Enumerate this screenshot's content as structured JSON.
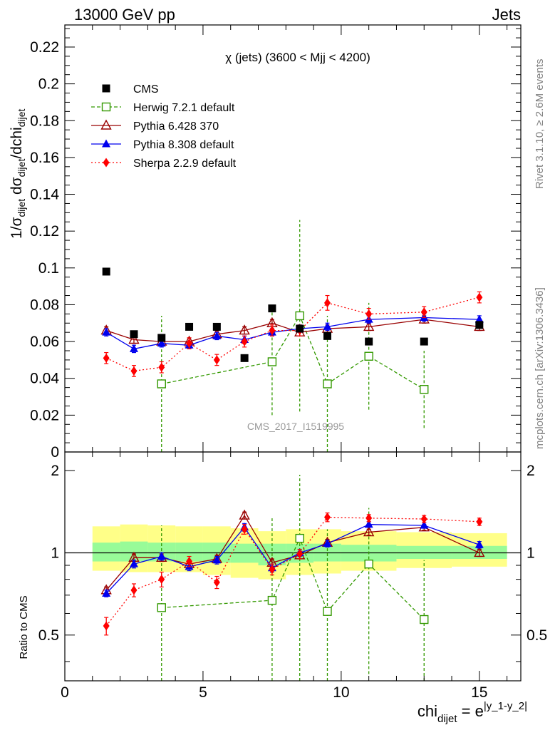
{
  "header": {
    "left": "13000 GeV pp",
    "right": "Jets"
  },
  "side_labels": {
    "top": "Rivet 3.1.10, ≥ 2.6M events",
    "bottom": "mcplots.cern.ch [arXiv:1306.3436]"
  },
  "watermark": "CMS_2017_I1519995",
  "plot_title": "χ (jets) (3600 < Mjj < 4200)",
  "axis_text": {
    "ylabel_main": "1/σdijet dσdijet/dchidijet",
    "ylabel_ratio": "Ratio to CMS",
    "xlabel": "chidijet = e|y_1-y_2|"
  },
  "colors": {
    "cms": "#000000",
    "herwig": "#339900",
    "pythia6": "#990000",
    "pythia8": "#0000ee",
    "sherpa": "#ff0000",
    "band_inner": "#98fb98",
    "band_outer": "#ffff88"
  },
  "chart_data": [
    {
      "type": "scatter",
      "panel": "main",
      "title": "χ (jets) (3600 < Mjj < 4200)",
      "xlim": [
        0,
        16.5
      ],
      "ylim": [
        0,
        0.232
      ],
      "yticks": [
        0,
        0.02,
        0.04,
        0.06,
        0.08,
        0.1,
        0.12,
        0.14,
        0.16,
        0.18,
        0.2,
        0.22
      ],
      "ytick_labels": [
        "0",
        "0.02",
        "0.04",
        "0.06",
        "0.08",
        "0.1",
        "0.12",
        "0.14",
        "0.16",
        "0.18",
        "0.2",
        "0.22"
      ],
      "legend_position": "top-left",
      "series": [
        {
          "name": "CMS",
          "key": "cms",
          "marker": "square-filled",
          "line": "none",
          "x": [
            1.5,
            2.5,
            3.5,
            4.5,
            5.5,
            6.5,
            7.5,
            8.5,
            9.5,
            11,
            13,
            15
          ],
          "y": [
            0.098,
            0.064,
            0.062,
            0.068,
            0.068,
            0.051,
            0.078,
            0.067,
            0.063,
            0.06,
            0.06,
            0.069
          ]
        },
        {
          "name": "Herwig 7.2.1 default",
          "key": "herwig",
          "marker": "square-open",
          "line": "dashed",
          "x": [
            3.5,
            7.5,
            8.5,
            9.5,
            11,
            13
          ],
          "y": [
            0.037,
            0.049,
            0.074,
            0.037,
            0.052,
            0.034
          ],
          "err": [
            0.037,
            0.029,
            0.052,
            0.037,
            0.029,
            0.021
          ]
        },
        {
          "name": "Pythia 6.428 370",
          "key": "pythia6",
          "marker": "triangle-open",
          "line": "solid",
          "x": [
            1.5,
            2.5,
            3.5,
            4.5,
            5.5,
            6.5,
            7.5,
            8.5,
            9.5,
            11,
            13,
            15
          ],
          "y": [
            0.066,
            0.061,
            0.06,
            0.06,
            0.064,
            0.066,
            0.07,
            0.065,
            0.067,
            0.068,
            0.072,
            0.068
          ],
          "err": [
            0.002,
            0.002,
            0.002,
            0.002,
            0.002,
            0.002,
            0.002,
            0.002,
            0.002,
            0.002,
            0.002,
            0.002
          ]
        },
        {
          "name": "Pythia 8.308 default",
          "key": "pythia8",
          "marker": "triangle-filled",
          "line": "solid",
          "x": [
            1.5,
            2.5,
            3.5,
            4.5,
            5.5,
            6.5,
            7.5,
            8.5,
            9.5,
            11,
            13,
            15
          ],
          "y": [
            0.065,
            0.056,
            0.059,
            0.058,
            0.063,
            0.061,
            0.065,
            0.067,
            0.068,
            0.072,
            0.073,
            0.072
          ],
          "err": [
            0.002,
            0.002,
            0.002,
            0.002,
            0.002,
            0.002,
            0.002,
            0.002,
            0.002,
            0.002,
            0.002,
            0.002
          ]
        },
        {
          "name": "Sherpa 2.2.9 default",
          "key": "sherpa",
          "marker": "diamond-filled",
          "line": "dotted",
          "x": [
            1.5,
            2.5,
            3.5,
            4.5,
            5.5,
            6.5,
            7.5,
            8.5,
            9.5,
            11,
            13,
            15
          ],
          "y": [
            0.051,
            0.044,
            0.046,
            0.059,
            0.05,
            0.06,
            0.066,
            0.066,
            0.081,
            0.075,
            0.076,
            0.084
          ],
          "err": [
            0.003,
            0.003,
            0.003,
            0.003,
            0.003,
            0.003,
            0.003,
            0.003,
            0.004,
            0.003,
            0.003,
            0.003
          ]
        }
      ]
    },
    {
      "type": "scatter",
      "panel": "ratio",
      "ylabel": "Ratio to CMS",
      "xlabel": "chidijet = e|y_1-y_2|",
      "xlim": [
        0,
        16.5
      ],
      "ylim": [
        0.34,
        2.34
      ],
      "yticks": [
        0.5,
        1,
        2
      ],
      "ytick_labels": [
        "0.5",
        "1",
        "2"
      ],
      "xticks": [
        0,
        5,
        10,
        15
      ],
      "xtick_labels": [
        "0",
        "5",
        "10",
        "15"
      ],
      "reference_line": 1,
      "band": {
        "edges": [
          1,
          2,
          3,
          4,
          5,
          6,
          7,
          8,
          9,
          10,
          12,
          14,
          16
        ],
        "inner_lo": [
          0.93,
          0.93,
          0.93,
          0.93,
          0.92,
          0.92,
          0.9,
          0.92,
          0.93,
          0.93,
          0.95,
          0.95
        ],
        "inner_hi": [
          1.09,
          1.1,
          1.09,
          1.09,
          1.09,
          1.08,
          1.08,
          1.08,
          1.08,
          1.07,
          1.06,
          1.06
        ],
        "outer_lo": [
          0.86,
          0.85,
          0.85,
          0.85,
          0.83,
          0.81,
          0.8,
          0.83,
          0.84,
          0.86,
          0.88,
          0.89
        ],
        "outer_hi": [
          1.25,
          1.27,
          1.26,
          1.25,
          1.25,
          1.23,
          1.2,
          1.22,
          1.22,
          1.2,
          1.19,
          1.18
        ]
      },
      "series": [
        {
          "name": "Herwig 7.2.1 default",
          "key": "herwig",
          "marker": "square-open",
          "line": "dashed",
          "x": [
            3.5,
            7.5,
            8.5,
            9.5,
            11,
            13
          ],
          "y": [
            0.63,
            0.67,
            1.13,
            0.61,
            0.91,
            0.57
          ],
          "err": [
            0.63,
            0.67,
            0.8,
            0.61,
            0.55,
            0.37
          ]
        },
        {
          "name": "Pythia 6.428 370",
          "key": "pythia6",
          "marker": "triangle-open",
          "line": "solid",
          "x": [
            1.5,
            2.5,
            3.5,
            4.5,
            5.5,
            6.5,
            7.5,
            8.5,
            9.5,
            11,
            13,
            15
          ],
          "y": [
            0.73,
            0.96,
            0.96,
            0.91,
            0.95,
            1.37,
            0.92,
            0.98,
            1.09,
            1.19,
            1.24,
            1.0
          ],
          "err": [
            0.02,
            0.03,
            0.03,
            0.03,
            0.03,
            0.04,
            0.03,
            0.03,
            0.03,
            0.03,
            0.03,
            0.03
          ]
        },
        {
          "name": "Pythia 8.308 default",
          "key": "pythia8",
          "marker": "triangle-filled",
          "line": "solid",
          "x": [
            1.5,
            2.5,
            3.5,
            4.5,
            5.5,
            6.5,
            7.5,
            8.5,
            9.5,
            11,
            13,
            15
          ],
          "y": [
            0.71,
            0.91,
            0.97,
            0.89,
            0.94,
            1.24,
            0.88,
            1.0,
            1.08,
            1.27,
            1.26,
            1.07
          ],
          "err": [
            0.02,
            0.03,
            0.03,
            0.03,
            0.03,
            0.04,
            0.03,
            0.03,
            0.03,
            0.03,
            0.03,
            0.03
          ]
        },
        {
          "name": "Sherpa 2.2.9 default",
          "key": "sherpa",
          "marker": "diamond-filled",
          "line": "dotted",
          "x": [
            1.5,
            2.5,
            3.5,
            4.5,
            5.5,
            6.5,
            7.5,
            8.5,
            9.5,
            11,
            13,
            15
          ],
          "y": [
            0.54,
            0.73,
            0.8,
            0.93,
            0.78,
            1.22,
            0.87,
            0.99,
            1.35,
            1.34,
            1.33,
            1.3
          ],
          "err": [
            0.04,
            0.04,
            0.05,
            0.04,
            0.04,
            0.05,
            0.04,
            0.04,
            0.05,
            0.04,
            0.04,
            0.04
          ]
        }
      ]
    }
  ]
}
